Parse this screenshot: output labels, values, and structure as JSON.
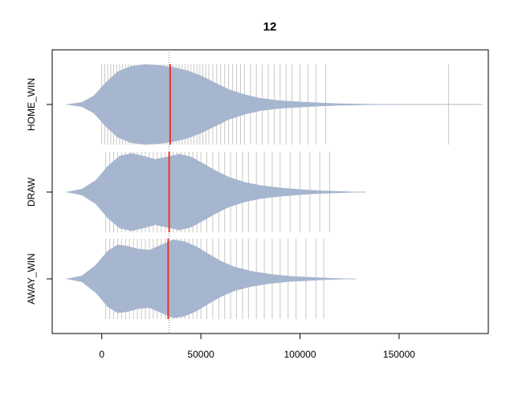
{
  "chart_data": {
    "type": "beanplot",
    "title": "12",
    "xlabel": "",
    "ylabel": "",
    "xlim": [
      -25000,
      195000
    ],
    "x_ticks": [
      0,
      50000,
      100000,
      150000
    ],
    "x_tick_labels": [
      "0",
      "50000",
      "100000",
      "150000"
    ],
    "categories": [
      "HOME_WIN",
      "DRAW",
      "AWAY_WIN"
    ],
    "overall_mean": 34000,
    "fill_color": "#a7b6cf",
    "mean_line_color": "#e8332a",
    "rug_color": "#c8c8c8",
    "series": [
      {
        "name": "HOME_WIN",
        "mean": 34500,
        "range": [
          -18000,
          192000
        ],
        "density": [
          [
            -18000,
            0.0
          ],
          [
            -10000,
            0.06
          ],
          [
            -4000,
            0.22
          ],
          [
            2000,
            0.55
          ],
          [
            8000,
            0.82
          ],
          [
            15000,
            0.96
          ],
          [
            22000,
            1.0
          ],
          [
            29000,
            0.98
          ],
          [
            36000,
            0.93
          ],
          [
            43000,
            0.85
          ],
          [
            50000,
            0.72
          ],
          [
            57000,
            0.55
          ],
          [
            64000,
            0.38
          ],
          [
            72000,
            0.25
          ],
          [
            80000,
            0.16
          ],
          [
            90000,
            0.1
          ],
          [
            100000,
            0.07
          ],
          [
            110000,
            0.045
          ],
          [
            120000,
            0.025
          ],
          [
            135000,
            0.012
          ],
          [
            155000,
            0.006
          ],
          [
            175000,
            0.003
          ],
          [
            192000,
            0.0
          ]
        ],
        "rug": [
          0,
          1500,
          3000,
          4500,
          6000,
          7500,
          9000,
          10500,
          12000,
          13500,
          15000,
          16500,
          18000,
          19500,
          21000,
          22500,
          24000,
          25500,
          27000,
          28500,
          30000,
          31500,
          33000,
          34500,
          36000,
          37500,
          39000,
          40500,
          42000,
          43500,
          45000,
          46500,
          48000,
          49500,
          51000,
          52500,
          54000,
          56000,
          58000,
          60000,
          62000,
          64000,
          66000,
          68000,
          70000,
          72000,
          75000,
          78000,
          81000,
          84000,
          87000,
          90000,
          93000,
          96000,
          100000,
          104000,
          108000,
          113000,
          175000
        ]
      },
      {
        "name": "DRAW",
        "mean": 34000,
        "range": [
          -18000,
          133000
        ],
        "density": [
          [
            -18000,
            0.0
          ],
          [
            -10000,
            0.08
          ],
          [
            -3000,
            0.3
          ],
          [
            3000,
            0.65
          ],
          [
            9000,
            0.9
          ],
          [
            15000,
            0.97
          ],
          [
            21000,
            0.9
          ],
          [
            27000,
            0.82
          ],
          [
            33000,
            0.88
          ],
          [
            39000,
            0.95
          ],
          [
            45000,
            0.88
          ],
          [
            51000,
            0.72
          ],
          [
            57000,
            0.55
          ],
          [
            64000,
            0.38
          ],
          [
            72000,
            0.25
          ],
          [
            80000,
            0.17
          ],
          [
            90000,
            0.11
          ],
          [
            100000,
            0.07
          ],
          [
            110000,
            0.04
          ],
          [
            120000,
            0.022
          ],
          [
            133000,
            0.0
          ]
        ],
        "rug": [
          2000,
          4000,
          6000,
          8000,
          10000,
          12000,
          14000,
          16000,
          18000,
          20000,
          22000,
          24000,
          26000,
          28000,
          30000,
          32000,
          34000,
          36000,
          38000,
          40000,
          42000,
          44000,
          46000,
          48000,
          50000,
          53000,
          56000,
          59000,
          62000,
          65000,
          68000,
          71000,
          74000,
          78000,
          82000,
          86000,
          90000,
          95000,
          100000,
          105000,
          110000,
          115000
        ]
      },
      {
        "name": "AWAY_WIN",
        "mean": 33500,
        "range": [
          -18000,
          128000
        ],
        "density": [
          [
            -18000,
            0.0
          ],
          [
            -10000,
            0.08
          ],
          [
            -3000,
            0.35
          ],
          [
            3000,
            0.7
          ],
          [
            8000,
            0.85
          ],
          [
            13000,
            0.82
          ],
          [
            18000,
            0.75
          ],
          [
            24000,
            0.72
          ],
          [
            30000,
            0.85
          ],
          [
            36000,
            0.98
          ],
          [
            42000,
            0.93
          ],
          [
            48000,
            0.8
          ],
          [
            54000,
            0.62
          ],
          [
            60000,
            0.45
          ],
          [
            67000,
            0.3
          ],
          [
            75000,
            0.2
          ],
          [
            85000,
            0.12
          ],
          [
            95000,
            0.07
          ],
          [
            105000,
            0.045
          ],
          [
            115000,
            0.022
          ],
          [
            128000,
            0.0
          ]
        ],
        "rug": [
          2000,
          4000,
          6000,
          8000,
          10000,
          12000,
          14000,
          16000,
          18000,
          20000,
          22000,
          24000,
          26000,
          28000,
          30000,
          32000,
          34000,
          36000,
          38000,
          40000,
          42000,
          44000,
          46000,
          48000,
          50000,
          53000,
          56000,
          59000,
          62000,
          65000,
          68000,
          71000,
          74000,
          78000,
          82000,
          86000,
          90000,
          94000,
          98000,
          103000,
          108000,
          112000
        ]
      }
    ]
  }
}
